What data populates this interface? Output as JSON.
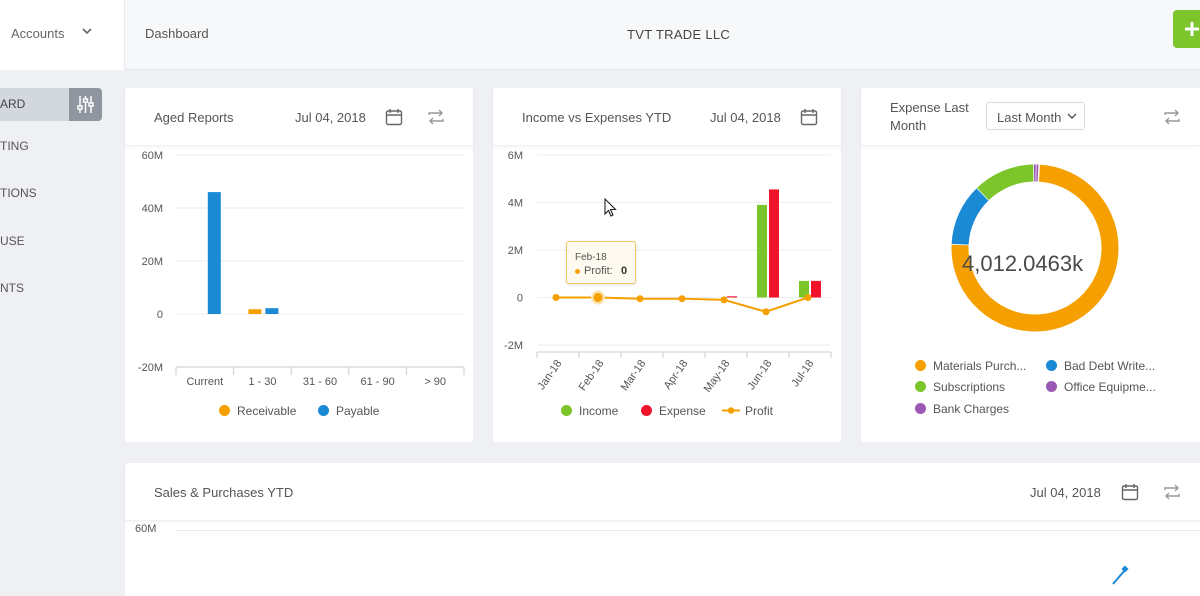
{
  "topbar": {
    "accounts_label": "Accounts",
    "breadcrumb": "Dashboard",
    "company": "TVT TRADE LLC",
    "add_icon": "plus-icon",
    "add_color": "#7cc52a"
  },
  "sidebar": {
    "active_label": "ARD",
    "filter_icon": "sliders-icon",
    "items": [
      {
        "label": "TING"
      },
      {
        "label": "TIONS"
      },
      {
        "label": "USE"
      },
      {
        "label": "NTS"
      }
    ]
  },
  "aged_reports": {
    "title": "Aged Reports",
    "date": "Jul 04, 2018",
    "calendar_icon": "calendar-icon",
    "refresh_icon": "refresh-icon",
    "legend": [
      {
        "label": "Receivable",
        "color": "#f5a000"
      },
      {
        "label": "Payable",
        "color": "#1a8ad4"
      }
    ]
  },
  "income_expenses": {
    "title": "Income vs Expenses YTD",
    "date": "Jul 04, 2018",
    "calendar_icon": "calendar-icon",
    "tooltip": {
      "title": "Feb-18",
      "label": "Profit:",
      "value": "0"
    },
    "legend": [
      {
        "label": "Income",
        "color": "#7cc52a"
      },
      {
        "label": "Expense",
        "color": "#f0142a"
      },
      {
        "label": "Profit",
        "color": "#f5a000"
      }
    ]
  },
  "expense_last": {
    "title_line1": "Expense Last",
    "title_line2": "Month",
    "select_value": "Last Month",
    "refresh_icon": "refresh-icon",
    "center_value": "4,012.0463k",
    "legend": [
      {
        "label": "Materials Purch...",
        "color": "#f5a000"
      },
      {
        "label": "Bad Debt Write...",
        "color": "#1a8ad4"
      },
      {
        "label": "Subscriptions",
        "color": "#7cc52a"
      },
      {
        "label": "Office Equipme...",
        "color": "#9b59b6"
      },
      {
        "label": "Bank Charges",
        "color": "#9b59b6"
      }
    ]
  },
  "sales_purchases": {
    "title": "Sales & Purchases YTD",
    "date": "Jul 04, 2018",
    "calendar_icon": "calendar-icon",
    "refresh_icon": "refresh-icon",
    "y_tick": "60M"
  },
  "chart_data": [
    {
      "type": "bar",
      "categories": [
        "Current",
        "1 - 30",
        "31 - 60",
        "61 - 90",
        "> 90"
      ],
      "series": [
        {
          "name": "Receivable",
          "values": [
            0,
            1.8,
            0,
            0,
            0
          ],
          "color": "#f5a000"
        },
        {
          "name": "Payable",
          "values": [
            46,
            2.2,
            0,
            0,
            0
          ],
          "color": "#1a8ad4"
        }
      ],
      "yticks": [
        "60M",
        "40M",
        "20M",
        "0",
        "-20M"
      ],
      "ylim": [
        -20,
        60
      ],
      "grid": true,
      "legend": "bottom"
    },
    {
      "type": "bar",
      "categories": [
        "Jan-18",
        "Feb-18",
        "Mar-18",
        "Apr-18",
        "May-18",
        "Jun-18",
        "Jul-18"
      ],
      "series": [
        {
          "name": "Income",
          "type": "bar",
          "values": [
            0,
            0,
            0,
            0,
            0,
            3.9,
            0.7
          ],
          "color": "#7cc52a"
        },
        {
          "name": "Expense",
          "type": "bar",
          "values": [
            0,
            0,
            0,
            0,
            0.05,
            4.55,
            0.7
          ],
          "color": "#f0142a"
        },
        {
          "name": "Profit",
          "type": "line",
          "values": [
            0,
            0,
            -0.05,
            -0.05,
            -0.1,
            -0.6,
            0
          ],
          "color": "#f5a000"
        }
      ],
      "yticks": [
        "6M",
        "4M",
        "2M",
        "0",
        "-2M"
      ],
      "ylim": [
        -2,
        6
      ],
      "grid": true,
      "legend": "bottom"
    },
    {
      "type": "pie",
      "donut": true,
      "slices": [
        {
          "label": "Materials Purch...",
          "value": 75,
          "color": "#f5a000"
        },
        {
          "label": "Bad Debt Write...",
          "value": 12,
          "color": "#1a8ad4"
        },
        {
          "label": "Subscriptions",
          "value": 12,
          "color": "#7cc52a"
        },
        {
          "label": "Office Equipme...",
          "value": 0.5,
          "color": "#9b59b6"
        },
        {
          "label": "Bank Charges",
          "value": 0.5,
          "color": "#9b59b6"
        }
      ],
      "legend": "bottom"
    }
  ]
}
